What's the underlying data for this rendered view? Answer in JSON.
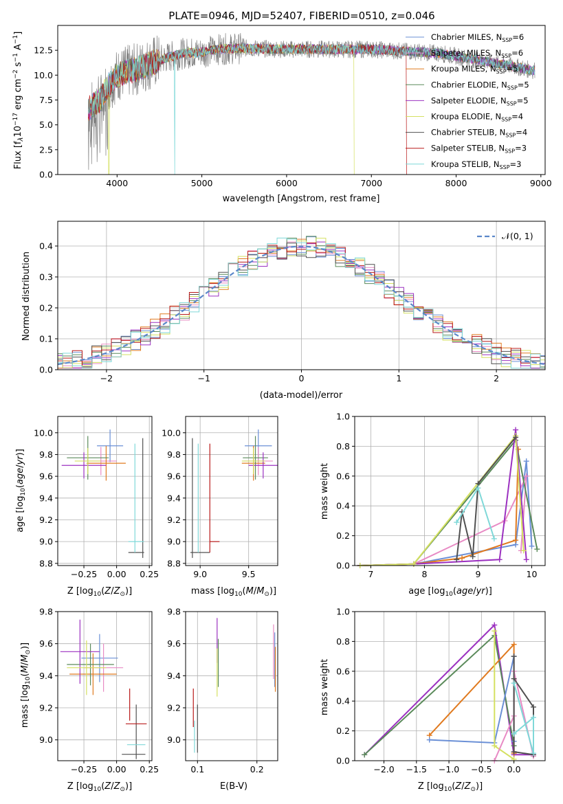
{
  "figure_title": "PLATE=0946, MJD=52407, FIBERID=0510, z=0.046",
  "colors": {
    "chabrier_miles": "#6a8fd6",
    "salpeter_miles": "#e88ac4",
    "kroupa_miles": "#e07a1f",
    "chabrier_elodie": "#5a8a5a",
    "salpeter_elodie": "#9b30c0",
    "kroupa_elodie": "#d4e060",
    "chabrier_stelib": "#505050",
    "salpeter_stelib": "#b81818",
    "kroupa_stelib": "#7fd8d8",
    "normal_curve": "#5b87c9",
    "data_spectrum": "#808080"
  },
  "chart_data": [
    {
      "id": "spectrum",
      "type": "line",
      "xlabel": "wavelength [Angstrom, rest frame]",
      "ylabel": "Flux [f",
      "xlim": [
        3300,
        9050
      ],
      "ylim": [
        0,
        15
      ],
      "xticks": [
        "4000",
        "5000",
        "6000",
        "7000",
        "8000",
        "9000"
      ],
      "yticks": [
        "0.0",
        "2.5",
        "5.0",
        "7.5",
        "10.0",
        "12.5"
      ],
      "legend": [
        {
          "label": "Chabrier MILES, N",
          "n": "=6"
        },
        {
          "label": "Salpeter MILES, N",
          "n": "=6"
        },
        {
          "label": "Kroupa MILES, N",
          "n": "=5"
        },
        {
          "label": "Chabrier ELODIE, N",
          "n": "=5"
        },
        {
          "label": "Salpeter ELODIE, N",
          "n": "=5"
        },
        {
          "label": "Kroupa ELODIE, N",
          "n": "=4"
        },
        {
          "label": "Chabrier STELIB, N",
          "n": "=4"
        },
        {
          "label": "Salpeter STELIB, N",
          "n": "=3"
        },
        {
          "label": "Kroupa STELIB, N",
          "n": "=3"
        }
      ],
      "legend_subscript": "SSP",
      "legend_position": "right",
      "grid": false,
      "series_continuum": {
        "x": [
          3650,
          3800,
          3900,
          4000,
          4100,
          4200,
          4400,
          4600,
          4800,
          5000,
          5200,
          5500,
          6000,
          6500,
          7000,
          7400,
          7800,
          8200,
          8600,
          8900
        ],
        "y": [
          6.5,
          7.5,
          9.0,
          10.0,
          10.3,
          10.5,
          11.2,
          11.8,
          12.2,
          12.3,
          12.6,
          12.7,
          12.6,
          12.6,
          12.6,
          12.4,
          12.2,
          11.6,
          11.0,
          10.5
        ]
      },
      "dropouts": [
        {
          "x": 3905,
          "series": "kroupa_elodie"
        },
        {
          "x": 4680,
          "series": "kroupa_stelib"
        },
        {
          "x": 6800,
          "series": "kroupa_elodie"
        },
        {
          "x": 7420,
          "series": "salpeter_stelib"
        }
      ]
    },
    {
      "id": "residual_hist",
      "type": "line",
      "xlabel": "(data-model)/error",
      "ylabel": "Normed distribution",
      "xlim": [
        -2.5,
        2.5
      ],
      "ylim": [
        0,
        0.48
      ],
      "xticks": [
        "−2",
        "−1",
        "0",
        "1",
        "2"
      ],
      "xtick_values": [
        -2,
        -1,
        0,
        1,
        2
      ],
      "yticks": [
        "0.0",
        "0.1",
        "0.2",
        "0.3",
        "0.4"
      ],
      "grid": true,
      "legend": "𝒩(0, 1)",
      "legend_position": "top-right",
      "bin_width": 0.1,
      "bin_start": -2.5
    },
    {
      "id": "age_vs_Z",
      "type": "scatter",
      "xlabel": "Z [log",
      "ylabel": "age  [log",
      "xlim": [
        -0.45,
        0.27
      ],
      "ylim": [
        8.78,
        10.15
      ],
      "xticks": [
        "−0.25",
        "0.00",
        "0.25"
      ],
      "xtick_values": [
        -0.25,
        0.0,
        0.25
      ],
      "yticks": [
        "8.8",
        "9.0",
        "9.2",
        "9.4",
        "9.6",
        "9.8",
        "10.0"
      ],
      "ytick_values": [
        8.8,
        9.0,
        9.2,
        9.4,
        9.6,
        9.8,
        10.0
      ],
      "grid": true,
      "points": [
        {
          "s": "chabrier_miles",
          "x": -0.05,
          "xerr": 0.1,
          "y": 9.88,
          "yerr": 0.15
        },
        {
          "s": "salpeter_miles",
          "x": -0.12,
          "xerr": 0.12,
          "y": 9.74,
          "yerr": 0.13
        },
        {
          "s": "kroupa_miles",
          "x": -0.08,
          "xerr": 0.15,
          "y": 9.72,
          "yerr": 0.16
        },
        {
          "s": "chabrier_elodie",
          "x": -0.22,
          "xerr": 0.16,
          "y": 9.77,
          "yerr": 0.2
        },
        {
          "s": "salpeter_elodie",
          "x": -0.25,
          "xerr": 0.17,
          "y": 9.7,
          "yerr": 0.12
        },
        {
          "s": "kroupa_elodie",
          "x": -0.22,
          "xerr": 0.1,
          "y": 9.74,
          "yerr": 0.12
        },
        {
          "s": "chabrier_stelib",
          "x": 0.15,
          "xerr": 0.06,
          "y": 8.9,
          "yerr": 0.0
        },
        {
          "s": "chabrier_stelib",
          "x": 0.2,
          "xerr": 0.0,
          "y": 9.4,
          "yerr": 0.55
        },
        {
          "s": "kroupa_stelib",
          "x": 0.15,
          "xerr": 0.06,
          "y": 9.0,
          "yerr": 0.0
        },
        {
          "s": "kroupa_stelib",
          "x": 0.14,
          "xerr": 0.0,
          "y": 9.4,
          "yerr": 0.5
        }
      ]
    },
    {
      "id": "age_vs_mass",
      "type": "scatter",
      "xlabel": "mass [log",
      "xlim": [
        8.85,
        9.8
      ],
      "ylim": [
        8.78,
        10.15
      ],
      "xticks": [
        "9.0",
        "9.5"
      ],
      "xtick_values": [
        9.0,
        9.5
      ],
      "yticks": [
        "8.8",
        "9.0",
        "9.2",
        "9.4",
        "9.6",
        "9.8",
        "10.0"
      ],
      "ytick_values": [
        8.8,
        9.0,
        9.2,
        9.4,
        9.6,
        9.8,
        10.0
      ],
      "grid": true,
      "points": [
        {
          "s": "chabrier_miles",
          "x": 9.6,
          "xerr": 0.14,
          "y": 9.88,
          "yerr": 0.15
        },
        {
          "s": "salpeter_miles",
          "x": 9.6,
          "xerr": 0.15,
          "y": 9.74,
          "yerr": 0.13
        },
        {
          "s": "kroupa_miles",
          "x": 9.55,
          "xerr": 0.12,
          "y": 9.72,
          "yerr": 0.16
        },
        {
          "s": "chabrier_elodie",
          "x": 9.57,
          "xerr": 0.13,
          "y": 9.77,
          "yerr": 0.2
        },
        {
          "s": "salpeter_elodie",
          "x": 9.65,
          "xerr": 0.15,
          "y": 9.7,
          "yerr": 0.12
        },
        {
          "s": "kroupa_elodie",
          "x": 9.55,
          "xerr": 0.12,
          "y": 9.74,
          "yerr": 0.12
        },
        {
          "s": "chabrier_stelib",
          "x": 9.0,
          "xerr": 0.1,
          "y": 8.9,
          "yerr": 0.0
        },
        {
          "s": "chabrier_stelib",
          "x": 8.92,
          "xerr": 0.0,
          "y": 9.4,
          "yerr": 0.55
        },
        {
          "s": "salpeter_stelib",
          "x": 9.15,
          "xerr": 0.05,
          "y": 9.0,
          "yerr": 0.0
        },
        {
          "s": "salpeter_stelib",
          "x": 9.1,
          "xerr": 0.0,
          "y": 9.4,
          "yerr": 0.5
        },
        {
          "s": "kroupa_stelib",
          "x": 8.98,
          "xerr": 0.0,
          "y": 9.4,
          "yerr": 0.5
        }
      ]
    },
    {
      "id": "mass_weight_vs_age",
      "type": "line",
      "xlabel": "age  [log",
      "ylabel": "mass weight",
      "xlim": [
        6.7,
        10.25
      ],
      "ylim": [
        0,
        1.0
      ],
      "xticks": [
        "7",
        "8",
        "9",
        "10"
      ],
      "xtick_values": [
        7,
        8,
        9,
        10
      ],
      "yticks": [
        "0.0",
        "0.2",
        "0.4",
        "0.6",
        "0.8",
        "1.0"
      ],
      "ytick_values": [
        0,
        0.2,
        0.4,
        0.6,
        0.8,
        1.0
      ],
      "grid": true,
      "series": [
        {
          "s": "chabrier_miles",
          "x": [
            6.8,
            7.8,
            9.7,
            9.9,
            10.0
          ],
          "y": [
            0.0,
            0.01,
            0.14,
            0.7,
            0.13
          ]
        },
        {
          "s": "salpeter_miles",
          "x": [
            6.8,
            7.8,
            9.5,
            9.9,
            9.8
          ],
          "y": [
            0.0,
            0.01,
            0.3,
            0.6,
            0.1
          ]
        },
        {
          "s": "kroupa_miles",
          "x": [
            6.8,
            7.8,
            8.7,
            9.7,
            9.75
          ],
          "y": [
            0.0,
            0.01,
            0.05,
            0.17,
            0.78
          ]
        },
        {
          "s": "chabrier_elodie",
          "x": [
            6.8,
            7.8,
            9.7,
            10.1
          ],
          "y": [
            0.0,
            0.01,
            0.84,
            0.11
          ]
        },
        {
          "s": "salpeter_elodie",
          "x": [
            6.8,
            7.8,
            9.4,
            9.7,
            9.9
          ],
          "y": [
            0.0,
            0.01,
            0.04,
            0.91,
            0.04
          ]
        },
        {
          "s": "kroupa_elodie",
          "x": [
            6.8,
            7.8,
            9.7,
            9.85
          ],
          "y": [
            0.0,
            0.01,
            0.87,
            0.1
          ]
        },
        {
          "s": "chabrier_stelib",
          "x": [
            8.6,
            8.7,
            8.9,
            9.0,
            9.7
          ],
          "y": [
            0.04,
            0.36,
            0.06,
            0.55,
            0.86
          ]
        },
        {
          "s": "kroupa_stelib",
          "x": [
            8.6,
            9.0,
            9.3
          ],
          "y": [
            0.29,
            0.52,
            0.18
          ]
        }
      ]
    },
    {
      "id": "mass_vs_Z",
      "type": "scatter",
      "xlabel": "Z [log",
      "ylabel": "mass [log",
      "xlim": [
        -0.45,
        0.27
      ],
      "ylim": [
        8.87,
        9.8
      ],
      "xticks": [
        "−0.25",
        "0.00",
        "0.25"
      ],
      "xtick_values": [
        -0.25,
        0.0,
        0.25
      ],
      "yticks": [
        "9.0",
        "9.2",
        "9.4",
        "9.6",
        "9.8"
      ],
      "ytick_values": [
        9.0,
        9.2,
        9.4,
        9.6,
        9.8
      ],
      "grid": true,
      "points": [
        {
          "s": "chabrier_miles",
          "x": -0.13,
          "xerr": 0.14,
          "y": 9.51,
          "yerr": 0.15
        },
        {
          "s": "salpeter_miles",
          "x": -0.1,
          "xerr": 0.15,
          "y": 9.45,
          "yerr": 0.15
        },
        {
          "s": "kroupa_miles",
          "x": -0.18,
          "xerr": 0.18,
          "y": 9.41,
          "yerr": 0.13
        },
        {
          "s": "chabrier_elodie",
          "x": -0.2,
          "xerr": 0.18,
          "y": 9.47,
          "yerr": 0.13
        },
        {
          "s": "salpeter_elodie",
          "x": -0.28,
          "xerr": 0.15,
          "y": 9.55,
          "yerr": 0.2
        },
        {
          "s": "kroupa_elodie",
          "x": -0.23,
          "xerr": 0.15,
          "y": 9.45,
          "yerr": 0.17
        },
        {
          "s": "chabrier_stelib",
          "x": 0.13,
          "xerr": 0.09,
          "y": 8.91,
          "yerr": 0.0
        },
        {
          "s": "chabrier_stelib",
          "x": 0.15,
          "xerr": 0.0,
          "y": 9.05,
          "yerr": 0.17
        },
        {
          "s": "salpeter_stelib",
          "x": 0.15,
          "xerr": 0.08,
          "y": 9.1,
          "yerr": 0.0
        },
        {
          "s": "salpeter_stelib",
          "x": 0.1,
          "xerr": 0.0,
          "y": 9.22,
          "yerr": 0.1
        },
        {
          "s": "kroupa_stelib",
          "x": 0.15,
          "xerr": 0.07,
          "y": 8.97,
          "yerr": 0.0
        }
      ]
    },
    {
      "id": "mass_vs_ebv",
      "type": "scatter",
      "xlabel": "E(B-V)",
      "xlim": [
        0.08,
        0.235
      ],
      "ylim": [
        8.87,
        9.8
      ],
      "xticks": [
        "0.1",
        "0.2"
      ],
      "xtick_values": [
        0.1,
        0.2
      ],
      "yticks": [
        "9.0",
        "9.2",
        "9.4",
        "9.6",
        "9.8"
      ],
      "ytick_values": [
        9.0,
        9.2,
        9.4,
        9.6,
        9.8
      ],
      "grid": true,
      "points": [
        {
          "s": "salpeter_elodie",
          "x": 0.133,
          "y": 9.62,
          "yerr": 0.14
        },
        {
          "s": "chabrier_elodie",
          "x": 0.135,
          "y": 9.48,
          "yerr": 0.15
        },
        {
          "s": "kroupa_elodie",
          "x": 0.133,
          "y": 9.42,
          "yerr": 0.15
        },
        {
          "s": "salpeter_miles",
          "x": 0.228,
          "y": 9.55,
          "yerr": 0.17
        },
        {
          "s": "chabrier_miles",
          "x": 0.23,
          "y": 9.5,
          "yerr": 0.17
        },
        {
          "s": "kroupa_miles",
          "x": 0.231,
          "y": 9.44,
          "yerr": 0.14
        },
        {
          "s": "salpeter_stelib",
          "x": 0.093,
          "y": 9.2,
          "yerr": 0.12
        },
        {
          "s": "chabrier_stelib",
          "x": 0.1,
          "y": 9.07,
          "yerr": 0.15
        },
        {
          "s": "kroupa_stelib",
          "x": 0.095,
          "y": 9.02,
          "yerr": 0.1
        }
      ]
    },
    {
      "id": "mass_weight_vs_Z",
      "type": "line",
      "xlabel": "Z [log",
      "ylabel": "mass weight",
      "xlim": [
        -2.45,
        0.48
      ],
      "ylim": [
        0,
        1.0
      ],
      "xticks": [
        "−2.0",
        "−1.5",
        "−1.0",
        "−0.5",
        "0.0"
      ],
      "xtick_values": [
        -2.0,
        -1.5,
        -1.0,
        -0.5,
        0.0
      ],
      "yticks": [
        "0.0",
        "0.2",
        "0.4",
        "0.6",
        "0.8",
        "1.0"
      ],
      "ytick_values": [
        0,
        0.2,
        0.4,
        0.6,
        0.8,
        1.0
      ],
      "grid": true,
      "series": [
        {
          "s": "salpeter_elodie",
          "x": [
            -2.3,
            -0.3,
            0.0,
            0.3
          ],
          "y": [
            0.04,
            0.91,
            0.04,
            0.04
          ]
        },
        {
          "s": "chabrier_elodie",
          "x": [
            -2.3,
            -0.3,
            0.0
          ],
          "y": [
            0.04,
            0.84,
            0.1
          ]
        },
        {
          "s": "kroupa_miles",
          "x": [
            -1.3,
            0.0,
            0.0
          ],
          "y": [
            0.17,
            0.78,
            0.05
          ]
        },
        {
          "s": "chabrier_miles",
          "x": [
            -1.3,
            -0.3,
            0.0,
            0.0
          ],
          "y": [
            0.14,
            0.12,
            0.7,
            0.13
          ]
        },
        {
          "s": "kroupa_elodie",
          "x": [
            -0.3,
            -0.3,
            0.0
          ],
          "y": [
            0.87,
            0.1,
            0.01
          ]
        },
        {
          "s": "salpeter_miles",
          "x": [
            -0.3,
            0.0,
            0.0,
            0.3
          ],
          "y": [
            0.0,
            0.3,
            0.6,
            0.03
          ]
        },
        {
          "s": "chabrier_stelib",
          "x": [
            0.0,
            0.3,
            0.3,
            0.0,
            0.0
          ],
          "y": [
            0.55,
            0.36,
            0.04,
            0.06,
            0.7
          ]
        },
        {
          "s": "kroupa_stelib",
          "x": [
            0.0,
            0.3,
            0.3,
            0.0
          ],
          "y": [
            0.18,
            0.29,
            0.05,
            0.52
          ]
        }
      ]
    }
  ]
}
